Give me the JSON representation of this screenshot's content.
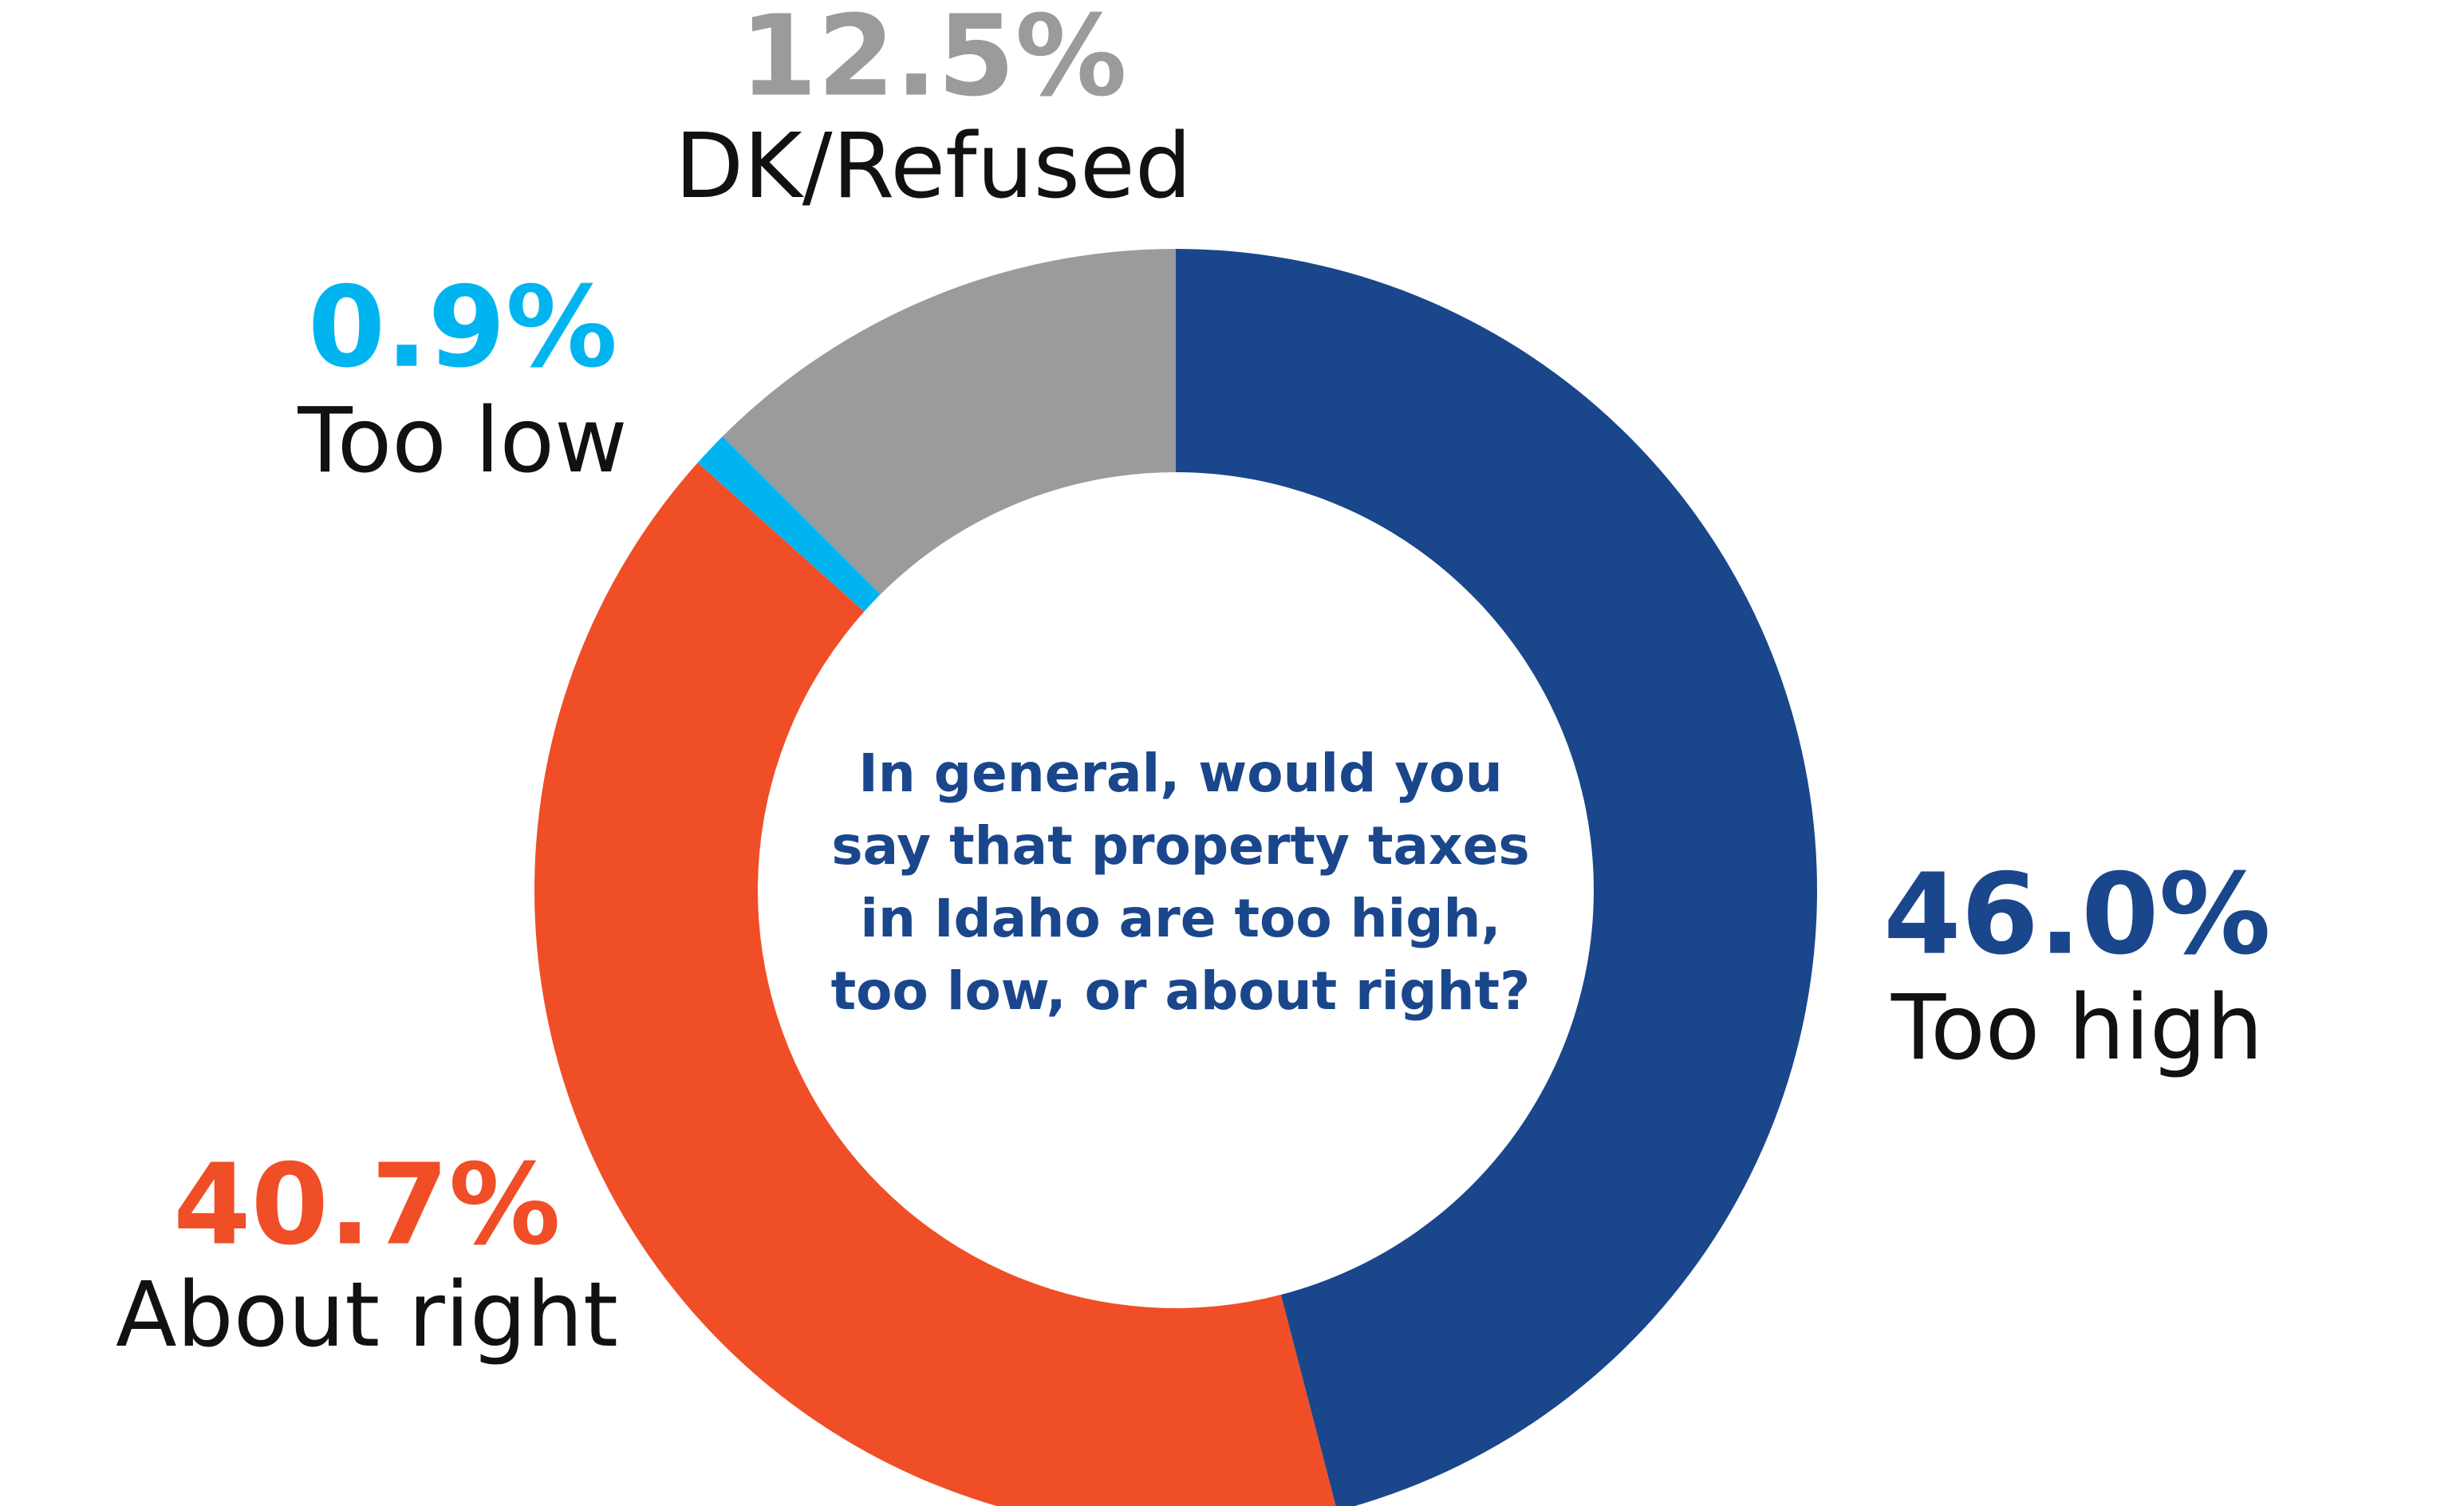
{
  "chart_data": {
    "type": "donut",
    "center_text": [
      "In general, would you",
      "say that property taxes",
      "in Idaho are too high,",
      "too low, or about right?"
    ],
    "categories": [
      "Too high",
      "About right",
      "Too low",
      "DK/Refused"
    ],
    "values": [
      46.0,
      40.7,
      0.9,
      12.5
    ],
    "value_labels": [
      "46.0%",
      "40.7%",
      "0.9%",
      "12.5%"
    ],
    "colors": [
      "#1a468c",
      "#f04e27",
      "#00b5ef",
      "#9a9b9d"
    ]
  }
}
